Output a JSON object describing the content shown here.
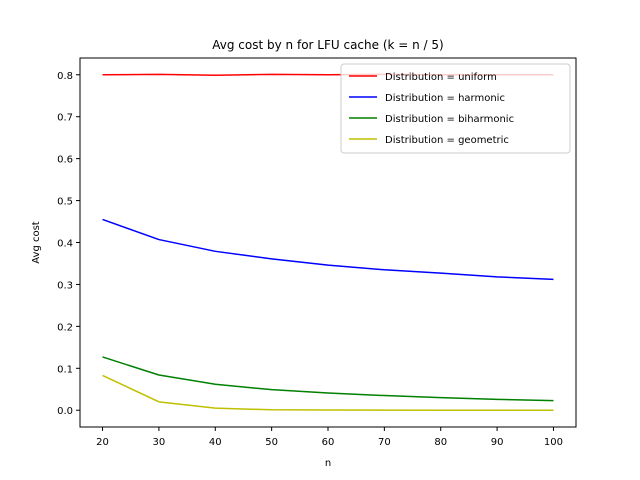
{
  "chart_data": {
    "type": "line",
    "title": "Avg cost by n for LFU cache (k = n / 5)",
    "xlabel": "n",
    "ylabel": "Avg cost",
    "x": [
      20,
      30,
      40,
      50,
      60,
      70,
      80,
      90,
      100
    ],
    "xlim": [
      16,
      104
    ],
    "ylim": [
      -0.04,
      0.84
    ],
    "xticks": [
      20,
      30,
      40,
      50,
      60,
      70,
      80,
      90,
      100
    ],
    "yticks": [
      0.0,
      0.1,
      0.2,
      0.3,
      0.4,
      0.5,
      0.6,
      0.7,
      0.8
    ],
    "ytick_labels": [
      "0.0",
      "0.1",
      "0.2",
      "0.3",
      "0.4",
      "0.5",
      "0.6",
      "0.7",
      "0.8"
    ],
    "grid": false,
    "legend_position": "top-right",
    "series": [
      {
        "name": "Distribution = uniform",
        "color": "#ff0000",
        "values": [
          0.8,
          0.801,
          0.799,
          0.801,
          0.8,
          0.801,
          0.8,
          0.8,
          0.8
        ]
      },
      {
        "name": "Distribution = harmonic",
        "color": "#0000ff",
        "values": [
          0.455,
          0.407,
          0.379,
          0.361,
          0.346,
          0.335,
          0.327,
          0.318,
          0.312
        ]
      },
      {
        "name": "Distribution = biharmonic",
        "color": "#008000",
        "values": [
          0.127,
          0.084,
          0.062,
          0.049,
          0.041,
          0.035,
          0.03,
          0.026,
          0.023
        ]
      },
      {
        "name": "Distribution = geometric",
        "color": "#bfbf00",
        "values": [
          0.083,
          0.02,
          0.005,
          0.001,
          0.0005,
          0.0002,
          0.0001,
          0.0001,
          0.0001
        ]
      }
    ]
  }
}
